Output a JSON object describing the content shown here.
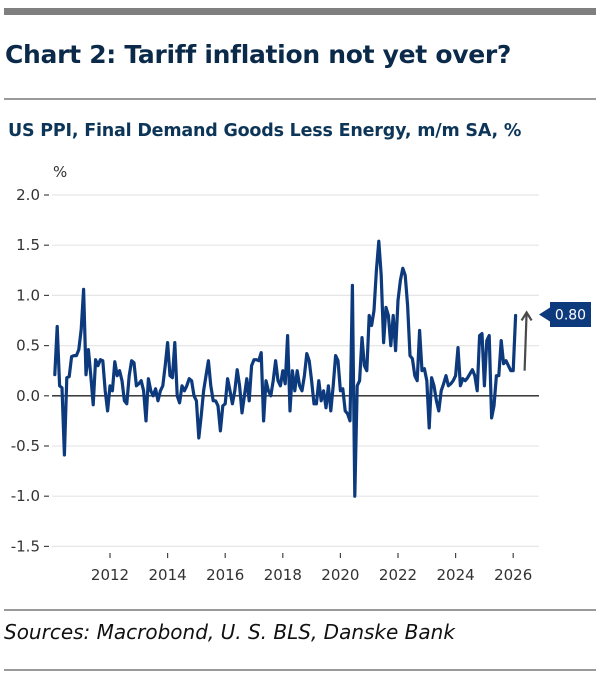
{
  "header": {
    "title": "Chart 2: Tariff inflation not yet over?",
    "subtitle": "US PPI, Final Demand Goods Less Energy, m/m SA, %"
  },
  "footer": {
    "sources": "Sources: Macrobond, U. S. BLS, Danske Bank"
  },
  "colors": {
    "series": "#0d3a7d",
    "label_bg": "#0d3a7d",
    "arrow": "#4a4a4a",
    "title": "#0b2a4a"
  },
  "chart_data": {
    "type": "line",
    "title": "Chart 2: Tariff inflation not yet over?",
    "subtitle": "US PPI, Final Demand Goods Less Energy, m/m SA, %",
    "ylabel": "%",
    "xlabel": "",
    "ylim": [
      -1.5,
      2.0
    ],
    "yticks": [
      2.0,
      1.5,
      1.0,
      0.5,
      0.0,
      -0.5,
      -1.0,
      -1.5
    ],
    "ytick_labels": [
      "2.0",
      "1.5",
      "1.0",
      "0.5",
      "0.0",
      "-0.5",
      "-1.0",
      "-1.5"
    ],
    "xlim": [
      2010.0,
      2026.85
    ],
    "xticks": [
      2012,
      2014,
      2016,
      2018,
      2020,
      2022,
      2024,
      2026
    ],
    "xtick_labels": [
      "2012",
      "2014",
      "2016",
      "2018",
      "2020",
      "2022",
      "2024",
      "2026"
    ],
    "grid": true,
    "frequency": "monthly",
    "start": "2010-02",
    "end": "2026-02",
    "series": [
      {
        "name": "US PPI, Final Demand Goods Less Energy, m/m SA",
        "values": [
          0.21,
          0.69,
          0.1,
          0.08,
          -0.59,
          0.18,
          0.19,
          0.39,
          0.4,
          0.4,
          0.46,
          0.66,
          1.06,
          0.21,
          0.46,
          0.2,
          -0.09,
          0.36,
          0.3,
          0.36,
          0.35,
          0.05,
          -0.15,
          0.1,
          0.05,
          0.34,
          0.2,
          0.25,
          0.15,
          -0.05,
          -0.08,
          0.2,
          0.35,
          0.33,
          0.1,
          0.12,
          0.15,
          0.05,
          -0.25,
          0.17,
          0.05,
          0.0,
          0.07,
          -0.05,
          0.05,
          0.1,
          0.3,
          0.53,
          0.2,
          0.18,
          0.53,
          0.0,
          -0.07,
          0.1,
          0.05,
          0.1,
          0.17,
          0.15,
          0.0,
          -0.05,
          -0.42,
          -0.2,
          0.05,
          0.2,
          0.35,
          0.1,
          -0.05,
          -0.05,
          -0.1,
          -0.35,
          -0.1,
          -0.08,
          0.17,
          0.05,
          -0.08,
          0.05,
          0.26,
          0.1,
          -0.17,
          0.0,
          0.17,
          -0.05,
          0.3,
          0.36,
          0.36,
          0.35,
          0.43,
          -0.25,
          0.15,
          0.05,
          0.0,
          0.15,
          0.35,
          0.15,
          0.1,
          0.25,
          0.12,
          0.6,
          -0.15,
          0.25,
          0.05,
          0.25,
          0.1,
          0.05,
          0.2,
          0.42,
          0.35,
          0.15,
          -0.08,
          -0.08,
          0.15,
          -0.05,
          0.05,
          -0.12,
          0.1,
          -0.15,
          0.1,
          0.4,
          0.35,
          0.05,
          0.07,
          -0.15,
          -0.18,
          -0.25,
          1.1,
          -1.0,
          0.1,
          0.15,
          0.58,
          0.3,
          0.25,
          0.8,
          0.7,
          0.85,
          1.25,
          1.54,
          1.2,
          0.53,
          0.88,
          0.8,
          0.5,
          0.8,
          0.45,
          0.95,
          1.15,
          1.27,
          1.2,
          0.9,
          0.4,
          0.37,
          0.2,
          0.15,
          0.65,
          0.25,
          0.27,
          0.15,
          -0.32,
          0.18,
          0.1,
          -0.05,
          -0.15,
          0.05,
          0.12,
          0.2,
          0.1,
          0.12,
          0.15,
          0.2,
          0.48,
          0.1,
          0.17,
          0.15,
          0.18,
          0.22,
          0.26,
          0.2,
          0.05,
          0.6,
          0.62,
          0.1,
          0.55,
          0.6,
          -0.22,
          -0.1,
          0.2,
          0.2,
          0.55,
          0.32,
          0.35,
          0.3,
          0.25,
          0.25,
          0.8
        ]
      }
    ],
    "annotations": [
      {
        "type": "label",
        "text": "0.80",
        "value": 0.8,
        "attached_to": "last-point"
      },
      {
        "type": "arrow",
        "direction": "up",
        "from": 0.25,
        "to": 0.83
      }
    ]
  }
}
